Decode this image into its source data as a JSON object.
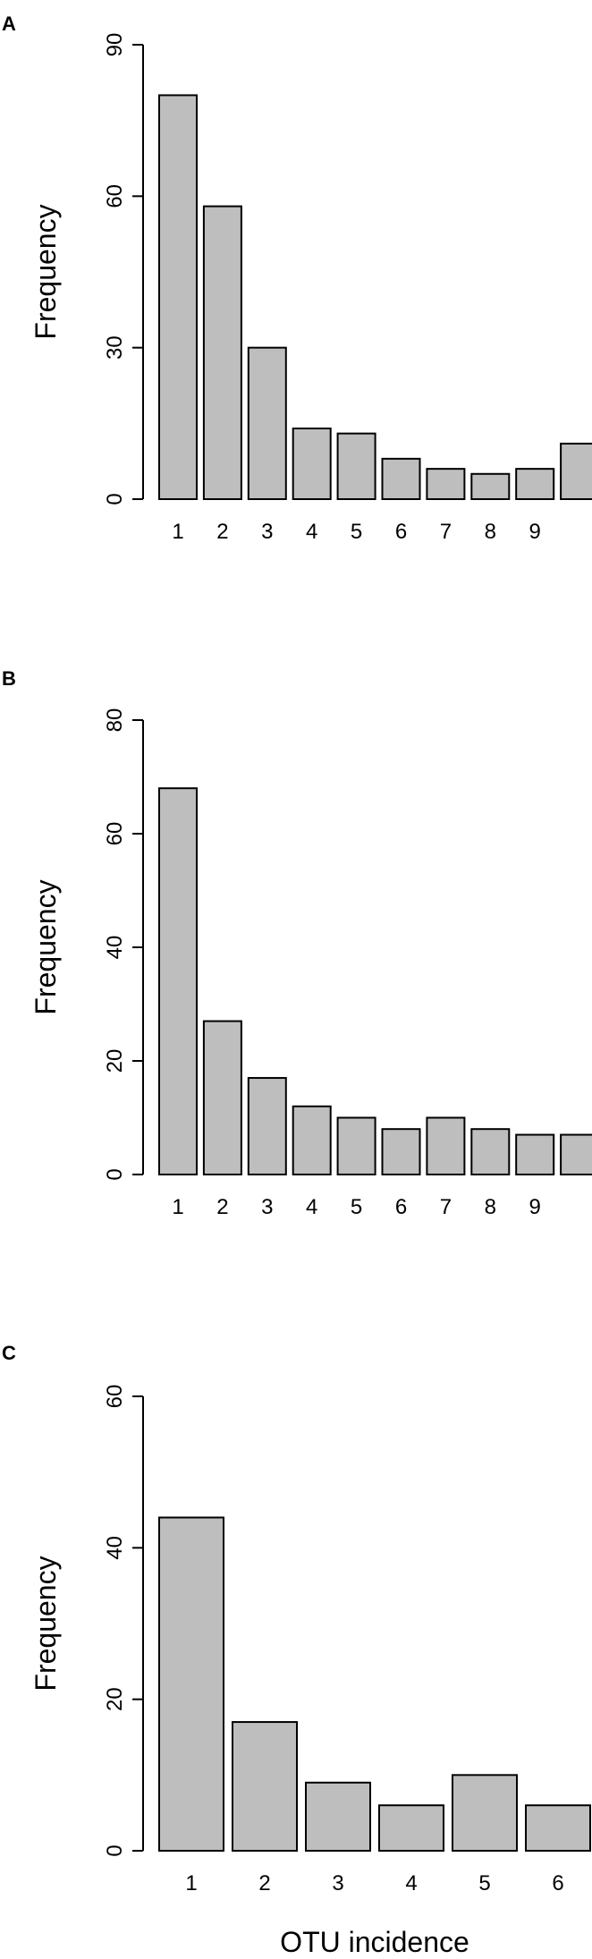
{
  "chart_data": [
    {
      "panel": "A",
      "type": "bar",
      "categories": [
        "1",
        "2",
        "3",
        "4",
        "5",
        "6",
        "7",
        "8",
        "9",
        ""
      ],
      "values": [
        80,
        58,
        30,
        14,
        13,
        8,
        6,
        5,
        6,
        11
      ],
      "ylabel": "Frequency",
      "xlabel": "",
      "yticks": [
        0,
        30,
        60,
        90
      ],
      "ylim": [
        0,
        90
      ],
      "bar_color": "#bebebe"
    },
    {
      "panel": "B",
      "type": "bar",
      "categories": [
        "1",
        "2",
        "3",
        "4",
        "5",
        "6",
        "7",
        "8",
        "9",
        ""
      ],
      "values": [
        68,
        27,
        17,
        12,
        10,
        8,
        10,
        8,
        7,
        7
      ],
      "ylabel": "Frequency",
      "xlabel": "",
      "yticks": [
        0,
        20,
        40,
        60,
        80
      ],
      "ylim": [
        0,
        80
      ],
      "bar_color": "#bebebe"
    },
    {
      "panel": "C",
      "type": "bar",
      "categories": [
        "1",
        "2",
        "3",
        "4",
        "5",
        "6"
      ],
      "values": [
        44,
        17,
        9,
        6,
        10,
        6
      ],
      "ylabel": "Frequency",
      "xlabel": "OTU incidence",
      "yticks": [
        0,
        20,
        40,
        60
      ],
      "ylim": [
        0,
        60
      ],
      "bar_color": "#bebebe"
    }
  ]
}
